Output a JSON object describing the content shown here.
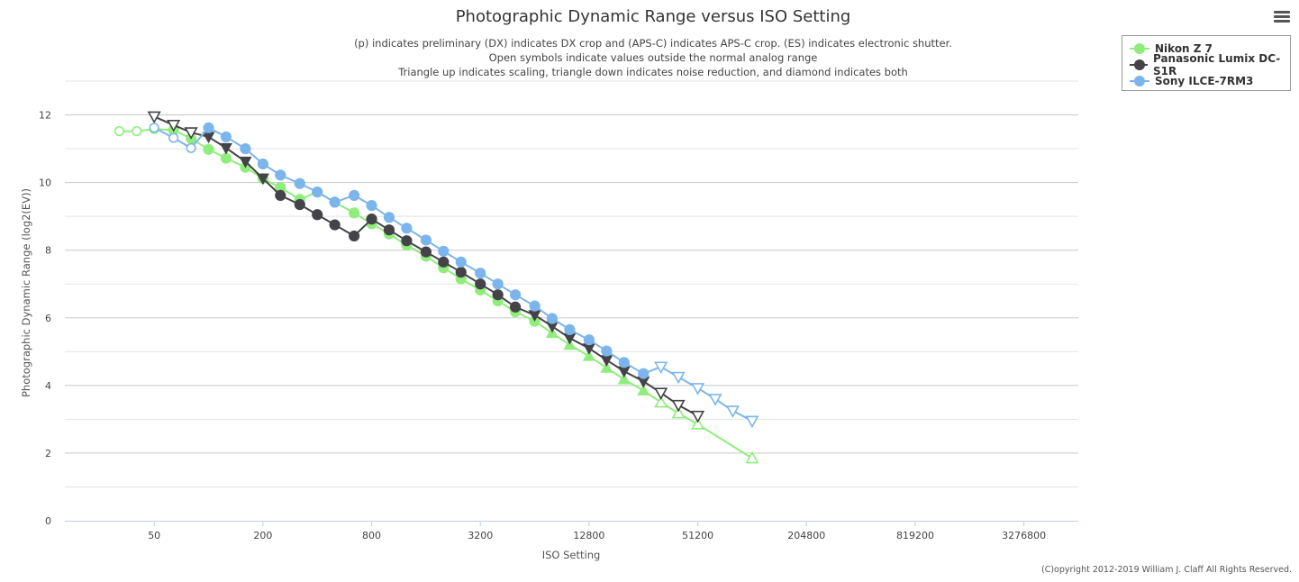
{
  "chart_data": {
    "type": "line",
    "title": "Photographic Dynamic Range versus ISO Setting",
    "subtitle_lines": [
      "(p) indicates preliminary (DX) indicates DX crop and (APS-C) indicates APS-C crop. (ES) indicates electronic shutter.",
      "Open symbols indicate values outside the normal analog range",
      "Triangle up indicates scaling, triangle down indicates noise reduction, and diamond indicates both"
    ],
    "xlabel": "ISO Setting",
    "ylabel": "Photographic Dynamic Range (log2(EV))",
    "x_scale": "log2",
    "xlim": [
      16,
      6553600
    ],
    "ylim": [
      0,
      13
    ],
    "x_ticks": [
      50,
      200,
      800,
      3200,
      12800,
      51200,
      204800,
      819200,
      3276800
    ],
    "y_ticks": [
      0,
      2,
      4,
      6,
      8,
      10,
      12
    ],
    "grid": true,
    "legend_position": "top-right",
    "series": [
      {
        "name": "Nikon Z 7",
        "color": "#90ed7d",
        "points": [
          {
            "x": 32,
            "y": 11.52,
            "m": "circle-open"
          },
          {
            "x": 40,
            "y": 11.52,
            "m": "circle-open"
          },
          {
            "x": 50,
            "y": 11.58,
            "m": "circle-open"
          },
          {
            "x": 64,
            "y": 11.55,
            "m": "circle"
          },
          {
            "x": 80,
            "y": 11.3,
            "m": "circle"
          },
          {
            "x": 100,
            "y": 10.98,
            "m": "circle"
          },
          {
            "x": 125,
            "y": 10.72,
            "m": "circle"
          },
          {
            "x": 160,
            "y": 10.45,
            "m": "circle"
          },
          {
            "x": 200,
            "y": 10.12,
            "m": "circle"
          },
          {
            "x": 250,
            "y": 9.85,
            "m": "circle"
          },
          {
            "x": 320,
            "y": 9.5,
            "m": "circle"
          },
          {
            "x": 400,
            "y": 9.72,
            "m": "circle"
          },
          {
            "x": 500,
            "y": 9.42,
            "m": "circle"
          },
          {
            "x": 640,
            "y": 9.1,
            "m": "circle"
          },
          {
            "x": 800,
            "y": 8.78,
            "m": "circle"
          },
          {
            "x": 1000,
            "y": 8.48,
            "m": "circle"
          },
          {
            "x": 1250,
            "y": 8.15,
            "m": "circle"
          },
          {
            "x": 1600,
            "y": 7.82,
            "m": "circle"
          },
          {
            "x": 2000,
            "y": 7.48,
            "m": "circle"
          },
          {
            "x": 2500,
            "y": 7.15,
            "m": "circle"
          },
          {
            "x": 3200,
            "y": 6.82,
            "m": "circle"
          },
          {
            "x": 4000,
            "y": 6.5,
            "m": "circle"
          },
          {
            "x": 5000,
            "y": 6.18,
            "m": "circle"
          },
          {
            "x": 6400,
            "y": 5.9,
            "m": "circle"
          },
          {
            "x": 8000,
            "y": 5.55,
            "m": "triangle-up"
          },
          {
            "x": 10000,
            "y": 5.2,
            "m": "triangle-up"
          },
          {
            "x": 12800,
            "y": 4.87,
            "m": "triangle-up"
          },
          {
            "x": 16000,
            "y": 4.52,
            "m": "triangle-up"
          },
          {
            "x": 20000,
            "y": 4.18,
            "m": "triangle-up"
          },
          {
            "x": 25600,
            "y": 3.85,
            "m": "triangle-up"
          },
          {
            "x": 32000,
            "y": 3.5,
            "m": "triangle-up-open"
          },
          {
            "x": 40000,
            "y": 3.18,
            "m": "triangle-up-open"
          },
          {
            "x": 51200,
            "y": 2.85,
            "m": "triangle-up-open"
          },
          {
            "x": 102400,
            "y": 1.85,
            "m": "triangle-up-open"
          }
        ]
      },
      {
        "name": "Panasonic Lumix DC-S1R",
        "color": "#434348",
        "points": [
          {
            "x": 50,
            "y": 11.95,
            "m": "triangle-down-open"
          },
          {
            "x": 64,
            "y": 11.7,
            "m": "triangle-down-open"
          },
          {
            "x": 80,
            "y": 11.48,
            "m": "triangle-down-open"
          },
          {
            "x": 100,
            "y": 11.35,
            "m": "triangle-down"
          },
          {
            "x": 125,
            "y": 11.02,
            "m": "triangle-down"
          },
          {
            "x": 160,
            "y": 10.62,
            "m": "triangle-down"
          },
          {
            "x": 200,
            "y": 10.12,
            "m": "triangle-down"
          },
          {
            "x": 250,
            "y": 9.62,
            "m": "circle"
          },
          {
            "x": 320,
            "y": 9.35,
            "m": "circle"
          },
          {
            "x": 400,
            "y": 9.05,
            "m": "circle"
          },
          {
            "x": 500,
            "y": 8.75,
            "m": "circle"
          },
          {
            "x": 640,
            "y": 8.42,
            "m": "circle"
          },
          {
            "x": 800,
            "y": 8.92,
            "m": "circle"
          },
          {
            "x": 1000,
            "y": 8.6,
            "m": "circle"
          },
          {
            "x": 1250,
            "y": 8.28,
            "m": "circle"
          },
          {
            "x": 1600,
            "y": 7.95,
            "m": "circle"
          },
          {
            "x": 2000,
            "y": 7.65,
            "m": "circle"
          },
          {
            "x": 2500,
            "y": 7.35,
            "m": "circle"
          },
          {
            "x": 3200,
            "y": 7.0,
            "m": "circle"
          },
          {
            "x": 4000,
            "y": 6.68,
            "m": "circle"
          },
          {
            "x": 5000,
            "y": 6.32,
            "m": "circle"
          },
          {
            "x": 6400,
            "y": 6.08,
            "m": "triangle-down"
          },
          {
            "x": 8000,
            "y": 5.75,
            "m": "triangle-down"
          },
          {
            "x": 10000,
            "y": 5.4,
            "m": "triangle-down"
          },
          {
            "x": 12800,
            "y": 5.1,
            "m": "triangle-down"
          },
          {
            "x": 16000,
            "y": 4.75,
            "m": "triangle-down"
          },
          {
            "x": 20000,
            "y": 4.42,
            "m": "triangle-down"
          },
          {
            "x": 25600,
            "y": 4.12,
            "m": "triangle-down"
          },
          {
            "x": 32000,
            "y": 3.78,
            "m": "triangle-down-open"
          },
          {
            "x": 40000,
            "y": 3.42,
            "m": "triangle-down-open"
          },
          {
            "x": 51200,
            "y": 3.1,
            "m": "triangle-down-open"
          }
        ]
      },
      {
        "name": "Sony ILCE-7RM3",
        "color": "#7cb5ec",
        "points": [
          {
            "x": 50,
            "y": 11.62,
            "m": "circle-open"
          },
          {
            "x": 64,
            "y": 11.32,
            "m": "circle-open"
          },
          {
            "x": 80,
            "y": 11.02,
            "m": "circle-open"
          },
          {
            "x": 100,
            "y": 11.62,
            "m": "circle"
          },
          {
            "x": 125,
            "y": 11.35,
            "m": "circle"
          },
          {
            "x": 160,
            "y": 11.0,
            "m": "circle"
          },
          {
            "x": 200,
            "y": 10.55,
            "m": "circle"
          },
          {
            "x": 250,
            "y": 10.22,
            "m": "circle"
          },
          {
            "x": 320,
            "y": 9.97,
            "m": "circle"
          },
          {
            "x": 400,
            "y": 9.72,
            "m": "circle"
          },
          {
            "x": 500,
            "y": 9.42,
            "m": "circle"
          },
          {
            "x": 640,
            "y": 9.62,
            "m": "circle"
          },
          {
            "x": 800,
            "y": 9.32,
            "m": "circle"
          },
          {
            "x": 1000,
            "y": 8.97,
            "m": "circle"
          },
          {
            "x": 1250,
            "y": 8.65,
            "m": "circle"
          },
          {
            "x": 1600,
            "y": 8.3,
            "m": "circle"
          },
          {
            "x": 2000,
            "y": 7.97,
            "m": "circle"
          },
          {
            "x": 2500,
            "y": 7.65,
            "m": "circle"
          },
          {
            "x": 3200,
            "y": 7.32,
            "m": "circle"
          },
          {
            "x": 4000,
            "y": 7.0,
            "m": "circle"
          },
          {
            "x": 5000,
            "y": 6.68,
            "m": "circle"
          },
          {
            "x": 6400,
            "y": 6.35,
            "m": "circle"
          },
          {
            "x": 8000,
            "y": 5.98,
            "m": "circle"
          },
          {
            "x": 10000,
            "y": 5.65,
            "m": "circle"
          },
          {
            "x": 12800,
            "y": 5.35,
            "m": "circle"
          },
          {
            "x": 16000,
            "y": 5.02,
            "m": "circle"
          },
          {
            "x": 20000,
            "y": 4.68,
            "m": "circle"
          },
          {
            "x": 25600,
            "y": 4.35,
            "m": "circle"
          },
          {
            "x": 32000,
            "y": 4.55,
            "m": "triangle-down-open"
          },
          {
            "x": 40000,
            "y": 4.25,
            "m": "triangle-down-open"
          },
          {
            "x": 51200,
            "y": 3.92,
            "m": "triangle-down-open"
          },
          {
            "x": 64000,
            "y": 3.6,
            "m": "triangle-down-open"
          },
          {
            "x": 80000,
            "y": 3.25,
            "m": "triangle-down-open"
          },
          {
            "x": 102400,
            "y": 2.95,
            "m": "triangle-down-open"
          }
        ]
      }
    ]
  },
  "menu": {
    "icon": "hamburger-menu-icon"
  },
  "copyright": "(C)opyright 2012-2019 William J. Claff All Rights Reserved."
}
